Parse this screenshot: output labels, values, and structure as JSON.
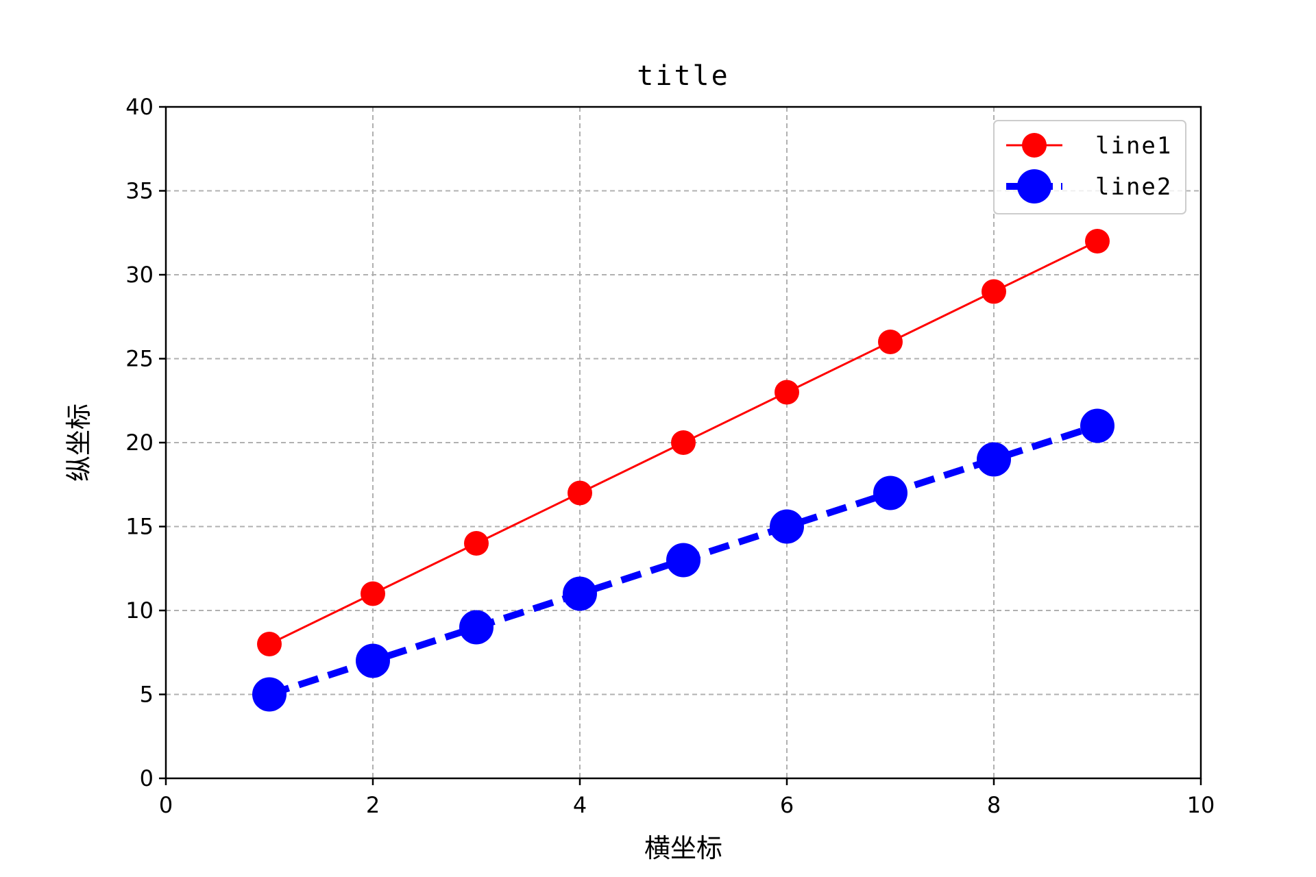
{
  "chart_data": {
    "type": "line",
    "title": "title",
    "xlabel": "横坐标",
    "ylabel": "纵坐标",
    "xlim": [
      0,
      10
    ],
    "ylim": [
      0,
      40
    ],
    "xticks": [
      0,
      2,
      4,
      6,
      8,
      10
    ],
    "yticks": [
      0,
      5,
      10,
      15,
      20,
      25,
      30,
      35,
      40
    ],
    "grid": true,
    "legend_position": "top-right",
    "x": [
      1,
      2,
      3,
      4,
      5,
      6,
      7,
      8,
      9
    ],
    "series": [
      {
        "name": "line1",
        "values": [
          8,
          11,
          14,
          17,
          20,
          23,
          26,
          29,
          32
        ],
        "color": "#ff0000",
        "line_style": "solid",
        "marker": "circle"
      },
      {
        "name": "line2",
        "values": [
          5,
          7,
          9,
          11,
          13,
          15,
          17,
          19,
          21
        ],
        "color": "#0000ff",
        "line_style": "dashed",
        "marker": "circle"
      }
    ]
  }
}
